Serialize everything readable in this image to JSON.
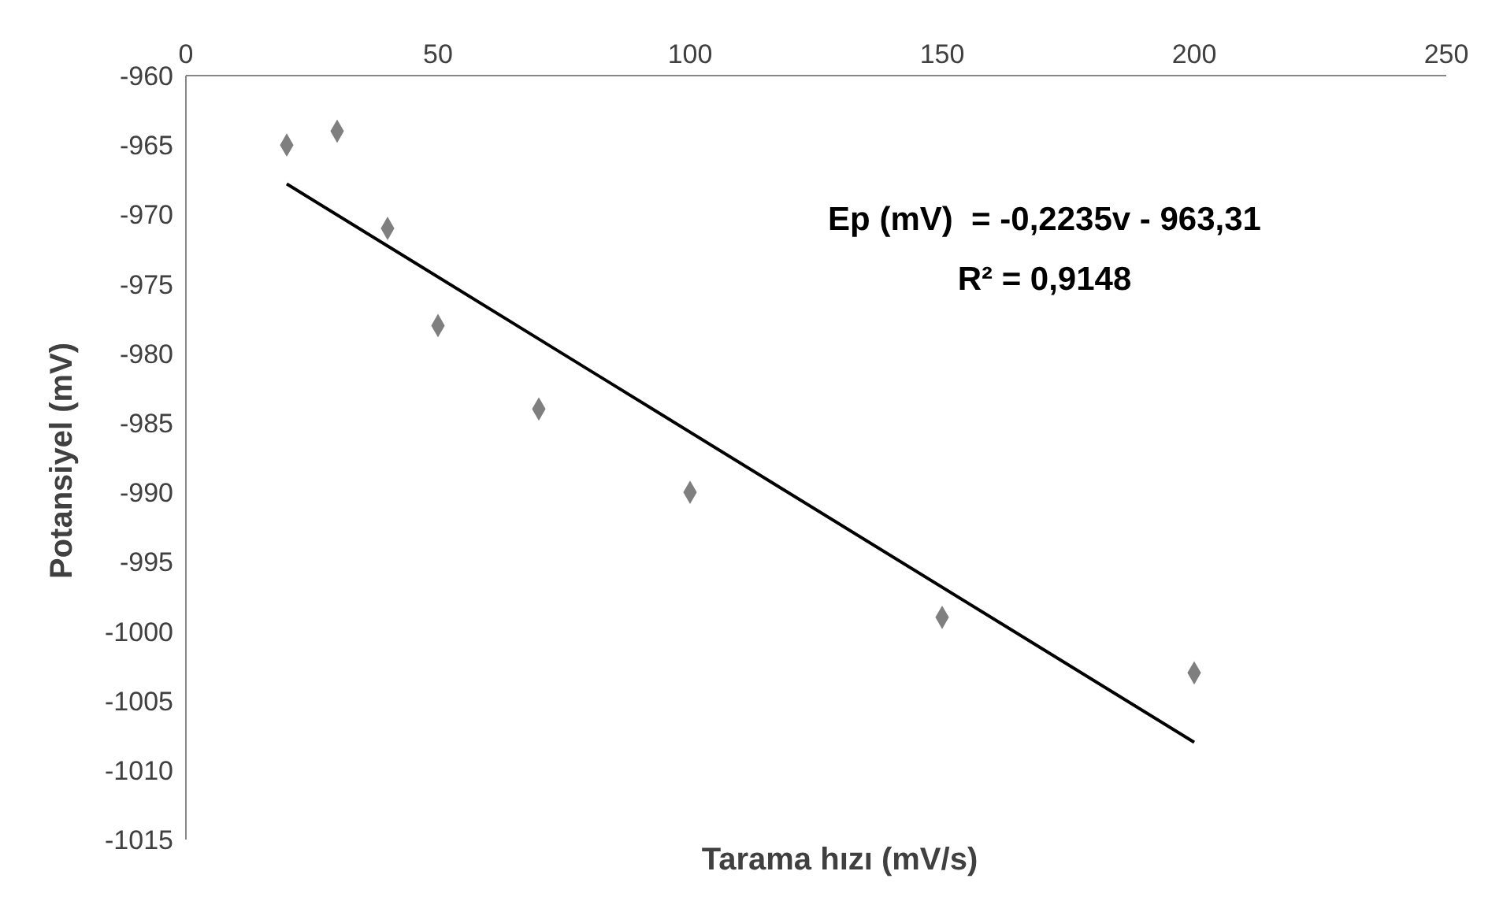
{
  "chart_data": {
    "type": "scatter",
    "xlabel": "Tarama hızı (mV/s)",
    "ylabel": "Potansiyel (mV)",
    "xlim": [
      0,
      250
    ],
    "xticks": [
      0,
      50,
      100,
      150,
      200,
      250
    ],
    "ylim": [
      -1015,
      -960
    ],
    "yticks": [
      -1015,
      -1010,
      -1005,
      -1000,
      -995,
      -990,
      -985,
      -980,
      -975,
      -970,
      -965,
      -960
    ],
    "grid": false,
    "legend": false,
    "series": [
      {
        "color": "#7f7f7f",
        "marker": "diamond",
        "x": [
          20,
          30,
          40,
          50,
          70,
          100,
          150,
          200
        ],
        "values": [
          -965,
          -964,
          -971,
          -978,
          -984,
          -990,
          -999,
          -1003
        ]
      },
      {
        "type": "line",
        "color": "#000000",
        "marker": "none",
        "line_style": "solid",
        "x": [
          20,
          200
        ],
        "values": [
          -967.8,
          -1008.0
        ]
      }
    ],
    "annotations": [
      "Ep (mV)  = -0,2235v - 963,31",
      "R² = 0,9148"
    ]
  }
}
